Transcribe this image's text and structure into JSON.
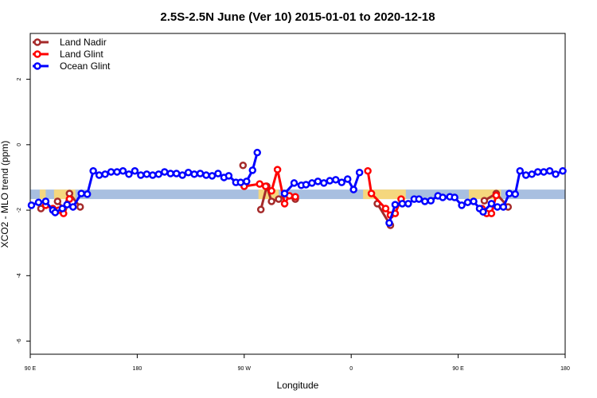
{
  "chart_data": {
    "type": "line",
    "title": "2.5S-2.5N June (Ver 10)   2015-01-01 to 2020-12-18",
    "x_label": "Longitude",
    "y_label": "XCO2 - MLO trend (ppm)",
    "xlim": [
      90,
      540
    ],
    "ylim": [
      -6.4,
      3.4
    ],
    "xticks": [
      {
        "value": 90,
        "label": "90 E"
      },
      180,
      {
        "value": 270,
        "label": "90 W"
      },
      {
        "value": 360,
        "label": "0"
      },
      {
        "value": 450,
        "label": "90 E"
      },
      {
        "value": 540,
        "label": "180"
      }
    ],
    "yticks": [
      2,
      0,
      -2,
      -4,
      -6
    ],
    "legend": "top-left",
    "band": {
      "range": [
        -1.66,
        -1.37
      ],
      "color": "#a8bfe0"
    },
    "shaded_spans": {
      "color": "#f5d77e",
      "spans": [
        [
          98,
          103
        ],
        [
          110,
          128
        ],
        [
          282,
          299
        ],
        [
          370,
          406
        ],
        [
          459,
          486
        ]
      ]
    },
    "series": [
      {
        "name": "Land Nadir",
        "color": "#a52a2a",
        "x": [
          99,
          106,
          113,
          118,
          123,
          132,
          200,
          269,
          276,
          284,
          289,
          293,
          299,
          304,
          313,
          350,
          382,
          393,
          430,
          472,
          482,
          492
        ],
        "values": [
          -1.95,
          null,
          -1.73,
          -1.95,
          -1.49,
          -1.9,
          null,
          -0.63,
          null,
          -1.98,
          -1.27,
          -1.73,
          -1.66,
          -1.49,
          -1.66,
          null,
          -1.8,
          -2.46,
          null,
          -1.71,
          -1.49,
          -1.9
        ]
      },
      {
        "name": "Land Glint",
        "color": "#ff0000",
        "x": [
          103,
          109,
          114,
          118,
          123,
          200,
          270,
          283,
          288,
          293,
          298,
          304,
          308,
          313,
          340,
          374,
          377,
          389,
          393,
          397,
          402,
          440,
          470,
          474,
          478,
          482
        ],
        "values": [
          -1.85,
          -1.95,
          -2.0,
          -2.1,
          -1.66,
          null,
          -1.27,
          -1.2,
          -1.27,
          -1.41,
          -0.76,
          -1.8,
          -1.56,
          -1.59,
          null,
          -0.8,
          -1.49,
          -1.95,
          -2.15,
          -2.1,
          -1.66,
          null,
          -1.95,
          -2.1,
          -2.1,
          -1.55
        ]
      },
      {
        "name": "Ocean Glint",
        "color": "#0000ff",
        "x": [
          91,
          97,
          103,
          109,
          111,
          117,
          121,
          126,
          133,
          138,
          143,
          148,
          153,
          158,
          163,
          168,
          173,
          178,
          183,
          188,
          193,
          198,
          203,
          208,
          213,
          218,
          223,
          228,
          233,
          238,
          243,
          248,
          253,
          257,
          263,
          267,
          272,
          277,
          281,
          292,
          304,
          312,
          318,
          322,
          327,
          332,
          337,
          342,
          347,
          352,
          357,
          362,
          367,
          380,
          392,
          397,
          403,
          408,
          413,
          417,
          422,
          427,
          433,
          437,
          443,
          447,
          453,
          458,
          463,
          468,
          471,
          478,
          483,
          488,
          493,
          498,
          502,
          507,
          512,
          517,
          522,
          527,
          532,
          538
        ],
        "values": [
          -1.85,
          -1.76,
          -1.73,
          -2.0,
          -2.07,
          -1.95,
          -1.83,
          -1.9,
          -1.49,
          -1.51,
          -0.8,
          -0.93,
          -0.9,
          -0.83,
          -0.83,
          -0.8,
          -0.9,
          -0.8,
          -0.93,
          -0.9,
          -0.93,
          -0.9,
          -0.83,
          -0.88,
          -0.88,
          -0.93,
          -0.85,
          -0.9,
          -0.88,
          -0.93,
          -0.95,
          -0.88,
          -1.0,
          -0.95,
          -1.15,
          -1.15,
          -1.12,
          -0.78,
          -0.24,
          null,
          -1.49,
          -1.17,
          -1.24,
          -1.22,
          -1.17,
          -1.12,
          -1.17,
          -1.1,
          -1.07,
          -1.15,
          -1.05,
          -1.37,
          -0.85,
          null,
          -2.39,
          -1.83,
          -1.8,
          -1.8,
          -1.66,
          -1.66,
          -1.73,
          -1.71,
          -1.56,
          -1.61,
          -1.59,
          -1.61,
          -1.85,
          -1.76,
          -1.73,
          -1.95,
          -2.05,
          -1.8,
          -1.9,
          -1.9,
          -1.49,
          -1.51,
          -0.8,
          -0.93,
          -0.9,
          -0.83,
          -0.83,
          -0.8,
          -0.9,
          -0.8
        ]
      }
    ]
  }
}
